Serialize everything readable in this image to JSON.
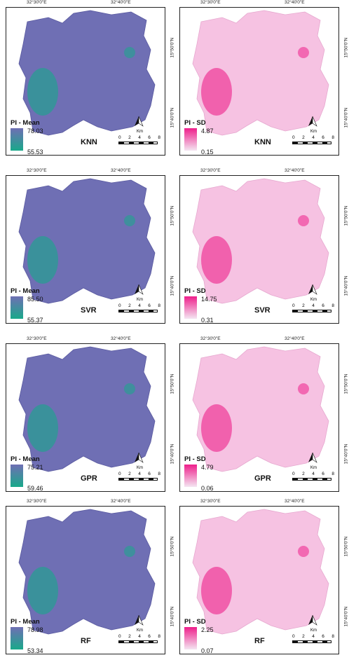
{
  "coords": {
    "lon_left": "32°30'0\"E",
    "lon_right": "32°40'0\"E",
    "lat_top": "15°50'0\"N",
    "lat_bottom": "15°40'0\"N"
  },
  "scale": {
    "unit": "Km",
    "ticks": [
      "0",
      "2",
      "4",
      "6",
      "8"
    ]
  },
  "colors": {
    "mean_high": "#6f6fb4",
    "mean_low": "#18a98a",
    "sd_high": "#ee1f8b",
    "sd_low": "#f4e6f2"
  },
  "panels": [
    {
      "model": "KNN",
      "title": "PI - Mean",
      "max": "78.03",
      "min": "55.53",
      "kind": "mean"
    },
    {
      "model": "KNN",
      "title": "PI - SD",
      "max": "4.87",
      "min": "0.15",
      "kind": "sd"
    },
    {
      "model": "SVR",
      "title": "PI - Mean",
      "max": "85.50",
      "min": "55.37",
      "kind": "mean"
    },
    {
      "model": "SVR",
      "title": "PI - SD",
      "max": "14.75",
      "min": "0.31",
      "kind": "sd"
    },
    {
      "model": "GPR",
      "title": "PI - Mean",
      "max": "75.21",
      "min": "59.46",
      "kind": "mean"
    },
    {
      "model": "GPR",
      "title": "PI - SD",
      "max": "4.79",
      "min": "0.06",
      "kind": "sd"
    },
    {
      "model": "RF",
      "title": "PI - Mean",
      "max": "78.98",
      "min": "53.34",
      "kind": "mean"
    },
    {
      "model": "RF",
      "title": "PI - SD",
      "max": "2.25",
      "min": "0.07",
      "kind": "sd"
    }
  ]
}
